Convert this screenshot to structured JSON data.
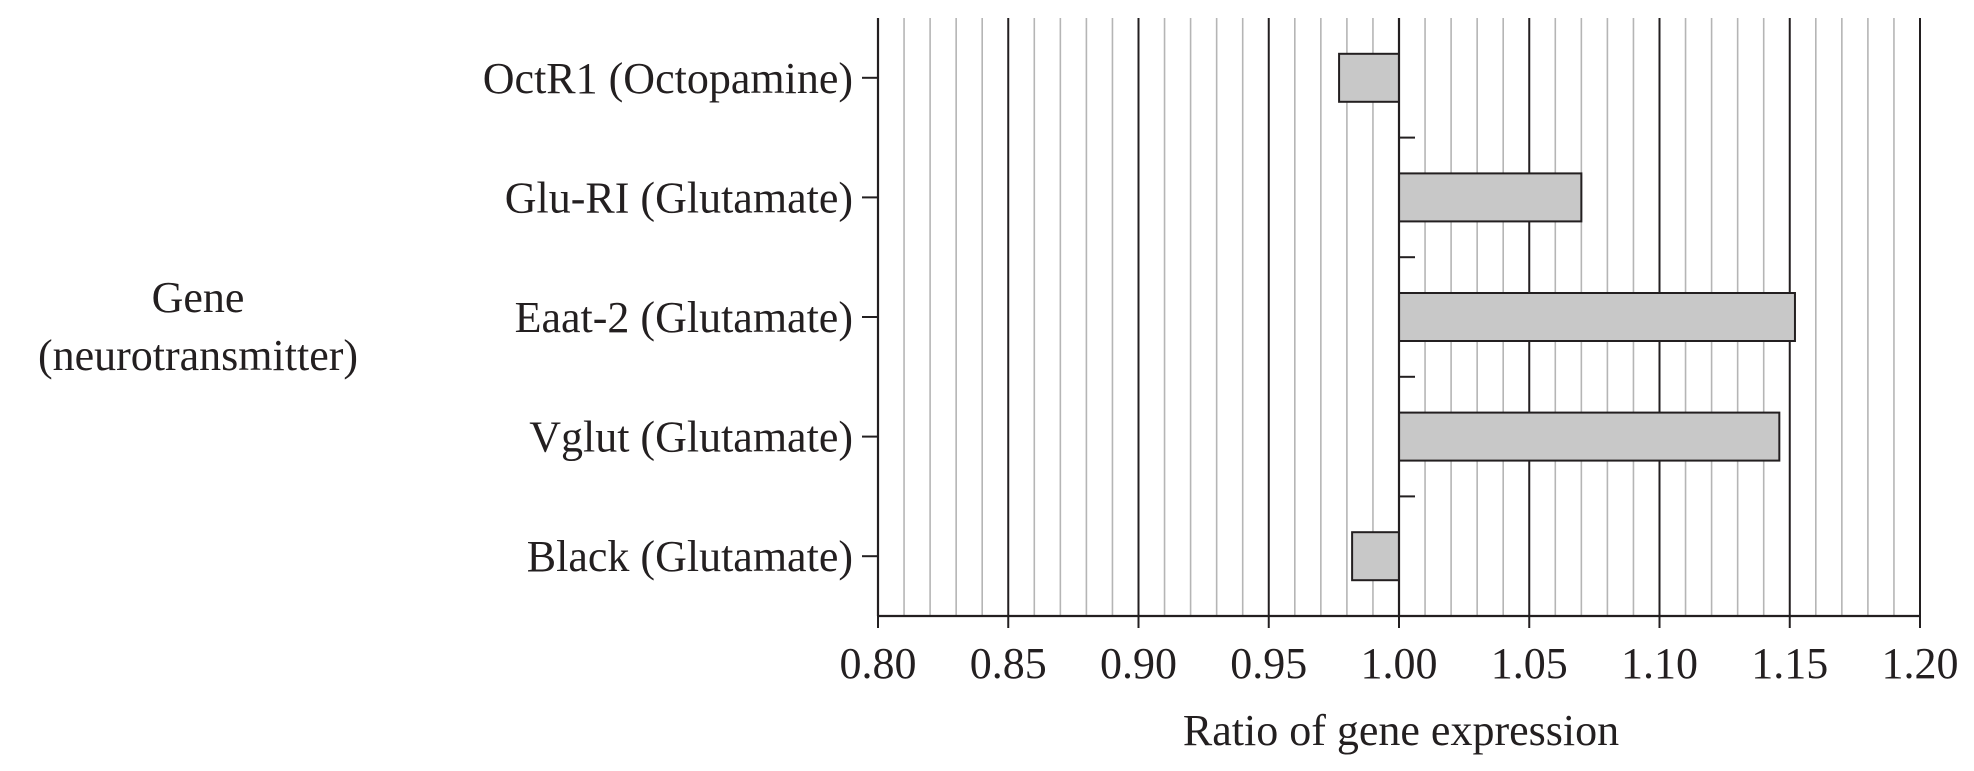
{
  "chart_data": {
    "type": "bar",
    "orientation": "horizontal",
    "categories": [
      "OctR1 (Octopamine)",
      "Glu-RI (Glutamate)",
      "Eaat-2 (Glutamate)",
      "Vglut (Glutamate)",
      "Black (Glutamate)"
    ],
    "values": [
      0.977,
      1.07,
      1.152,
      1.146,
      0.982
    ],
    "baseline": 1.0,
    "xlabel": "Ratio of gene expression",
    "ylabel": [
      "Gene",
      "(neurotransmitter)"
    ],
    "xlim": [
      0.8,
      1.2
    ],
    "xticks": [
      "0.80",
      "0.85",
      "0.90",
      "0.95",
      "1.00",
      "1.05",
      "1.10",
      "1.15",
      "1.20"
    ],
    "minor_step": 0.01,
    "grid": true,
    "bar_color": "#c8c8c8",
    "line_color": "#231f20",
    "minor_grid_color": "#b5b5b5"
  }
}
